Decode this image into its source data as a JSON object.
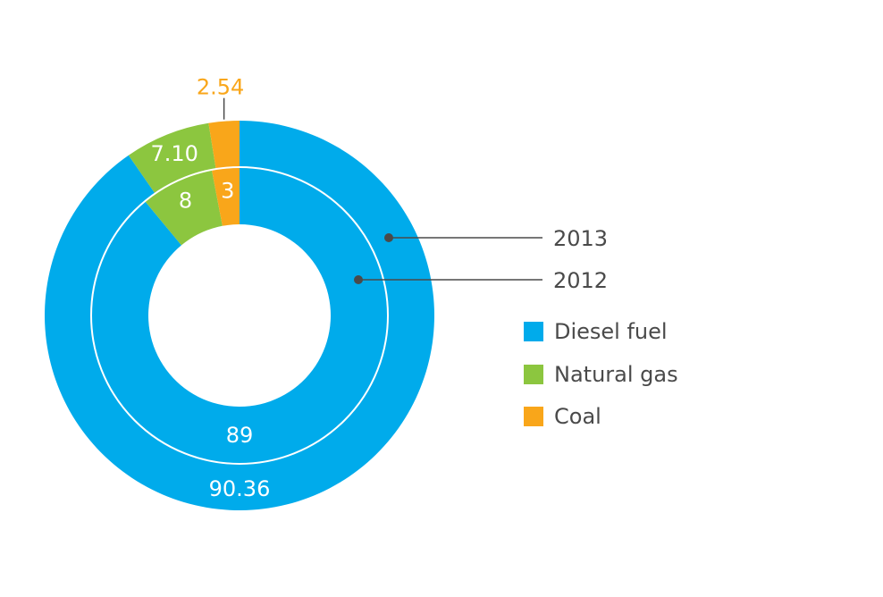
{
  "chart_data": {
    "type": "pie",
    "variant": "nested-donut",
    "categories": [
      "Diesel fuel",
      "Natural gas",
      "Coal"
    ],
    "colors": [
      "#00abeb",
      "#8cc63f",
      "#f9a61a"
    ],
    "series": [
      {
        "name": "2013",
        "ring": "outer",
        "values": [
          90.36,
          7.1,
          2.54
        ],
        "labels": [
          "90.36",
          "7.10",
          "2.54"
        ]
      },
      {
        "name": "2012",
        "ring": "inner",
        "values": [
          89,
          8,
          3
        ],
        "labels": [
          "89",
          "8",
          "3"
        ]
      }
    ],
    "legend": {
      "placement": "right",
      "items": [
        {
          "label": "Diesel fuel",
          "color": "#00abeb"
        },
        {
          "label": "Natural gas",
          "color": "#8cc63f"
        },
        {
          "label": "Coal",
          "color": "#f9a61a"
        }
      ]
    }
  }
}
